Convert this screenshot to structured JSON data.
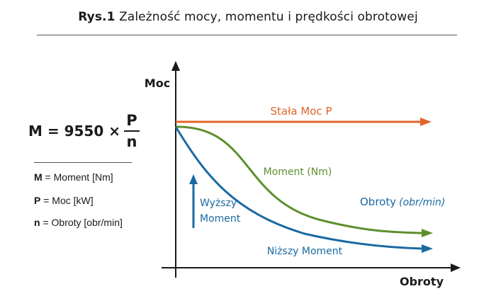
{
  "header": {
    "figure_number": "Rys.1",
    "title": "Zależność mocy, momentu i prędkości obrotowej"
  },
  "formula": {
    "lhs": "M = 9550 ×",
    "numerator": "P",
    "denominator": "n"
  },
  "legend": [
    {
      "symbol": "M",
      "text": " = Moment [Nm]"
    },
    {
      "symbol": "P",
      "text": " = Moc [kW]"
    },
    {
      "symbol": "n",
      "text": " = Obroty [obr/min]"
    }
  ],
  "colors": {
    "power": "#e0662a",
    "torque": "#5e8f2e",
    "speed": "#1a6aa2",
    "axis": "#1a1a1a"
  },
  "chart_data": {
    "type": "line",
    "title": "",
    "ylabel": "Moc",
    "xlabel": "Obroty",
    "series": [
      {
        "name": "Stała Moc P"
      },
      {
        "name": "Moment (Nm)"
      },
      {
        "name": "Niższy Moment"
      }
    ],
    "annotations": {
      "rpm_label_main": "Obroty",
      "rpm_label_unit": "(obr/min)",
      "higher_torque_line1": "Wyższy",
      "higher_torque_line2": "Moment"
    }
  }
}
